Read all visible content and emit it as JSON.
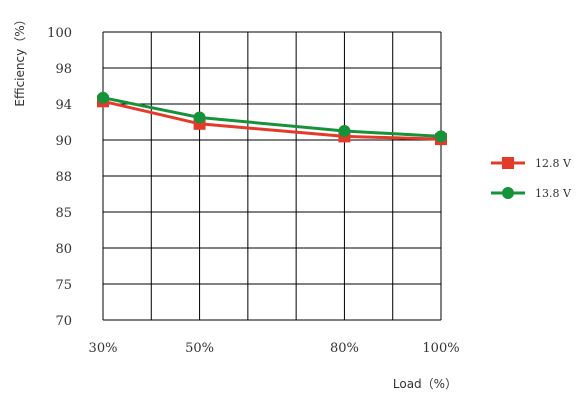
{
  "chart_data": {
    "type": "line",
    "title": "",
    "xlabel": "Load（%）",
    "ylabel": "Efficiency（%）",
    "x_categories": [
      "30%",
      "50%",
      "80%",
      "100%"
    ],
    "x_positions": [
      30,
      50,
      80,
      100
    ],
    "y_tick_labels": [
      "100",
      "98",
      "94",
      "90",
      "88",
      "85",
      "80",
      "75",
      "70"
    ],
    "grid": true,
    "legend_position": "right",
    "series": [
      {
        "name": "12.8 V",
        "marker": "square",
        "color": "#e43a2a",
        "values": [
          94.3,
          91.8,
          90.4,
          90.1
        ]
      },
      {
        "name": "13.8 V",
        "marker": "circle",
        "color": "#16923a",
        "values": [
          94.7,
          92.5,
          91.0,
          90.4
        ]
      }
    ]
  }
}
